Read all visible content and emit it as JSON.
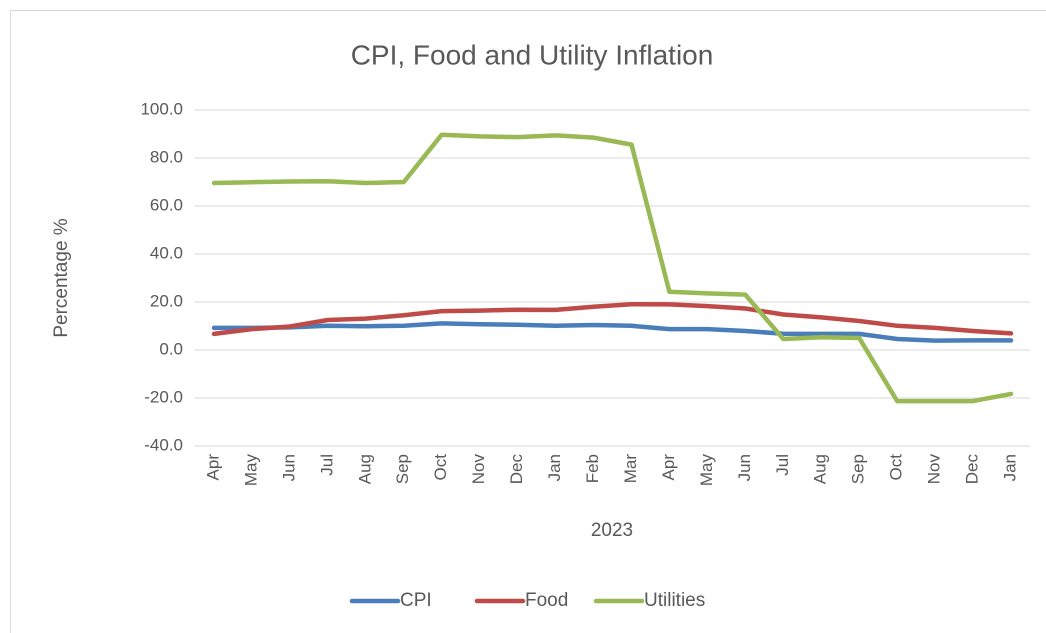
{
  "chart_data": {
    "type": "line",
    "title": "CPI, Food and Utility Inflation",
    "xlabel": "2023",
    "ylabel": "Percentage %",
    "categories": [
      "Apr",
      "May",
      "Jun",
      "Jul",
      "Aug",
      "Sep",
      "Oct",
      "Nov",
      "Dec",
      "Jan",
      "Feb",
      "Mar",
      "Apr",
      "May",
      "Jun",
      "Jul",
      "Aug",
      "Sep",
      "Oct",
      "Nov",
      "Dec",
      "Jan"
    ],
    "series": [
      {
        "name": "CPI",
        "color": "#4a7ebb",
        "values": [
          9.2,
          9.2,
          9.4,
          10.1,
          9.9,
          10.1,
          11.1,
          10.7,
          10.5,
          10.1,
          10.4,
          10.1,
          8.7,
          8.7,
          7.9,
          6.8,
          6.7,
          6.7,
          4.6,
          3.9,
          4.0,
          4.0
        ]
      },
      {
        "name": "Food",
        "color": "#be4b48",
        "values": [
          6.7,
          8.7,
          9.8,
          12.5,
          13.1,
          14.5,
          16.2,
          16.4,
          16.8,
          16.7,
          18.0,
          19.1,
          19.0,
          18.3,
          17.3,
          14.8,
          13.6,
          12.1,
          10.1,
          9.2,
          7.9,
          6.9
        ]
      },
      {
        "name": "Utilities",
        "color": "#98b954",
        "values": [
          69.6,
          69.9,
          70.2,
          70.3,
          69.6,
          70.0,
          89.7,
          89.0,
          88.7,
          89.4,
          88.5,
          85.6,
          24.3,
          23.6,
          23.1,
          4.6,
          5.3,
          5.0,
          -21.3,
          -21.3,
          -21.3,
          -18.3
        ]
      }
    ],
    "ylim": [
      -40,
      100
    ],
    "yticks": [
      {
        "value": -40,
        "label": "-40.0"
      },
      {
        "value": -20,
        "label": "-20.0"
      },
      {
        "value": 0,
        "label": "0.0"
      },
      {
        "value": 20,
        "label": "20.0"
      },
      {
        "value": 40,
        "label": "40.0"
      },
      {
        "value": 60,
        "label": "60.0"
      },
      {
        "value": 80,
        "label": "80.0"
      },
      {
        "value": 100,
        "label": "100.0"
      }
    ],
    "grid": true,
    "legend": "bottom"
  }
}
